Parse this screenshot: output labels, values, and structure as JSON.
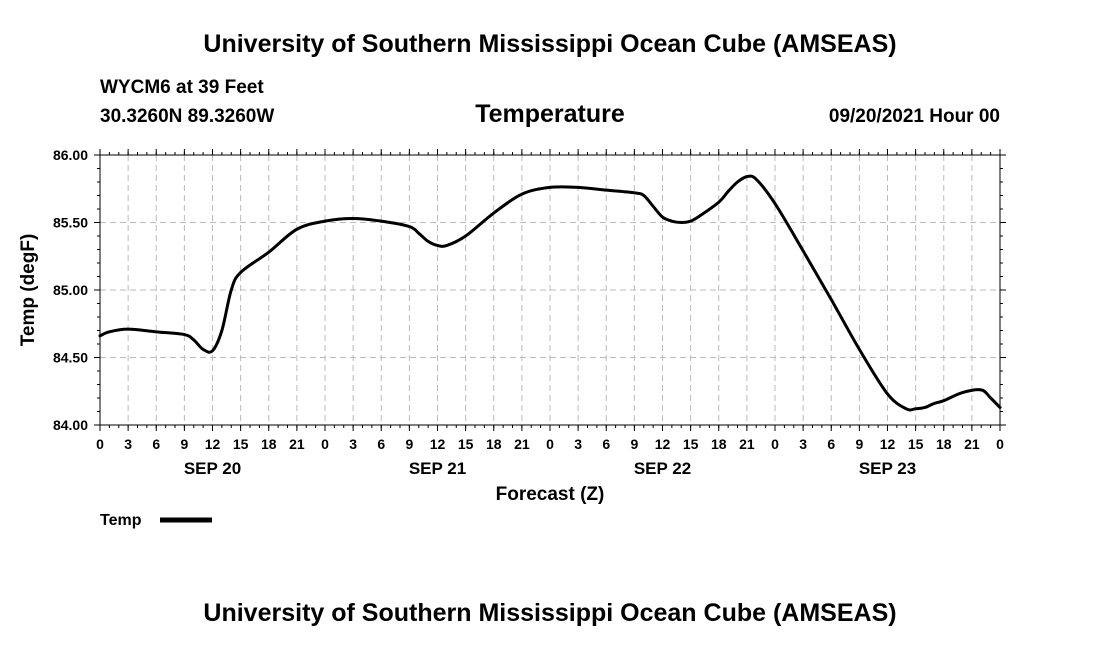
{
  "header": {
    "title_top": "University of Southern Mississippi Ocean Cube (AMSEAS)",
    "station": "WYCM6 at 39 Feet",
    "coords": "30.3260N  89.3260W",
    "plot_title": "Temperature",
    "datetime": "09/20/2021 Hour 00",
    "title_bottom": "University of Southern Mississippi Ocean Cube (AMSEAS)"
  },
  "chart_data": {
    "type": "line",
    "title": "Temperature",
    "xlabel": "Forecast (Z)",
    "ylabel": "Temp (degF)",
    "ylim": [
      84.0,
      86.0
    ],
    "xlim": [
      0,
      96
    ],
    "y_ticks": [
      "84.00",
      "84.50",
      "85.00",
      "85.50",
      "86.00"
    ],
    "x_tick_labels": [
      "0",
      "3",
      "6",
      "9",
      "12",
      "15",
      "18",
      "21",
      "0",
      "3",
      "6",
      "9",
      "12",
      "15",
      "18",
      "21",
      "0",
      "3",
      "6",
      "9",
      "12",
      "15",
      "18",
      "21",
      "0",
      "3",
      "6",
      "9",
      "12",
      "15",
      "18",
      "21",
      "0"
    ],
    "date_labels": [
      {
        "hour": 12,
        "label": "SEP 20"
      },
      {
        "hour": 36,
        "label": "SEP 21"
      },
      {
        "hour": 60,
        "label": "SEP 22"
      },
      {
        "hour": 84,
        "label": "SEP 23"
      }
    ],
    "grid": true,
    "legend": {
      "position": "bottom-left",
      "label": "Temp"
    },
    "series": [
      {
        "name": "Temp",
        "x": [
          0,
          1,
          3,
          6,
          9,
          10,
          11,
          12,
          13,
          14,
          15,
          18,
          21,
          24,
          27,
          30,
          33,
          34,
          35,
          36,
          37,
          39,
          42,
          45,
          48,
          51,
          54,
          57,
          58,
          59,
          60,
          61,
          62,
          63,
          64,
          66,
          67,
          68,
          69,
          70,
          72,
          75,
          78,
          81,
          84,
          86,
          87,
          88,
          89,
          90,
          92,
          94,
          95,
          96
        ],
        "y": [
          84.66,
          84.69,
          84.71,
          84.69,
          84.67,
          84.63,
          84.56,
          84.55,
          84.7,
          85.0,
          85.13,
          85.28,
          85.45,
          85.51,
          85.53,
          85.51,
          85.47,
          85.42,
          85.36,
          85.33,
          85.33,
          85.4,
          85.57,
          85.71,
          85.76,
          85.76,
          85.74,
          85.72,
          85.7,
          85.62,
          85.54,
          85.51,
          85.5,
          85.51,
          85.55,
          85.65,
          85.73,
          85.8,
          85.84,
          85.82,
          85.64,
          85.29,
          84.93,
          84.56,
          84.23,
          84.12,
          84.12,
          84.13,
          84.16,
          84.18,
          84.24,
          84.26,
          84.2,
          84.13
        ]
      }
    ]
  }
}
